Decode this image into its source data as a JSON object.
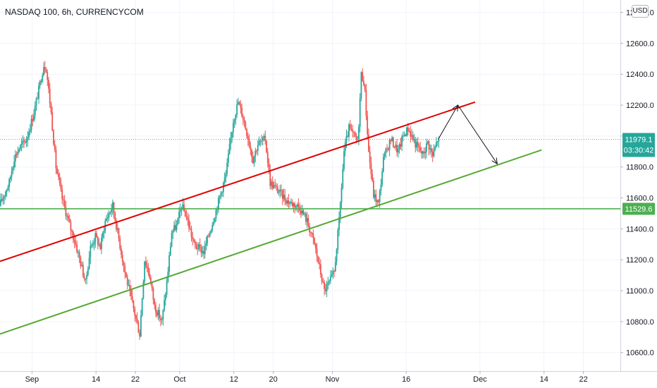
{
  "title": "NASDAQ 100, 6h, CURRENCYCOM",
  "currency_button": "USD",
  "price_labels": {
    "last_price": "11979.1",
    "countdown": "03:30:42",
    "support_level": "11529.6"
  },
  "colors": {
    "up": "#26a69a",
    "down": "#ef5350",
    "resistance_line": "#e00000",
    "support_line": "#55a832",
    "horizontal_line": "#4caf50",
    "last_price_label": "#26a69a",
    "axis_text": "#131722",
    "arrow": "#131722"
  },
  "chart_data": {
    "type": "candlestick",
    "symbol": "NASDAQ 100",
    "interval": "6h",
    "exchange": "CURRENCYCOM",
    "ylim": [
      10480,
      12880
    ],
    "y_ticks": [
      10600,
      10800,
      11000,
      11200,
      11400,
      11600,
      11800,
      12000,
      12200,
      12400,
      12600,
      12800
    ],
    "y_tick_labels": [
      "10600.0",
      "10800.0",
      "11000.0",
      "11200.0",
      "11400.0",
      "11600.0",
      "11800.0",
      "12000.0",
      "12200.0",
      "12400.0",
      "12600.0",
      "12800.0"
    ],
    "x_ticks": [
      {
        "label": "Sep",
        "day": 0
      },
      {
        "label": "14",
        "day": 13
      },
      {
        "label": "22",
        "day": 21
      },
      {
        "label": "Oct",
        "day": 30
      },
      {
        "label": "12",
        "day": 41
      },
      {
        "label": "20",
        "day": 49
      },
      {
        "label": "Nov",
        "day": 61
      },
      {
        "label": "16",
        "day": 76
      },
      {
        "label": "Dec",
        "day": 91
      },
      {
        "label": "14",
        "day": 104
      },
      {
        "label": "22",
        "day": 112
      }
    ],
    "x_day_range": [
      -6.5,
      119.5
    ],
    "last_price": 11979.1,
    "support_level": 11529.6,
    "path": [
      [
        -6.5,
        11550
      ],
      [
        -4.5,
        11700
      ],
      [
        -3.5,
        11860
      ],
      [
        -2.5,
        11920
      ],
      [
        -1,
        11980
      ],
      [
        0.5,
        12150
      ],
      [
        1.5,
        12300
      ],
      [
        2.5,
        12460
      ],
      [
        3,
        12440
      ],
      [
        4,
        12150
      ],
      [
        5,
        11800
      ],
      [
        6.2,
        11600
      ],
      [
        7.5,
        11450
      ],
      [
        9,
        11300
      ],
      [
        10,
        11180
      ],
      [
        11,
        11050
      ],
      [
        12,
        11280
      ],
      [
        13,
        11350
      ],
      [
        14,
        11280
      ],
      [
        15,
        11450
      ],
      [
        16.5,
        11550
      ],
      [
        17.5,
        11380
      ],
      [
        19,
        11120
      ],
      [
        20,
        10980
      ],
      [
        21,
        10850
      ],
      [
        22,
        10720
      ],
      [
        23,
        11200
      ],
      [
        24,
        11100
      ],
      [
        25,
        10900
      ],
      [
        26.5,
        10800
      ],
      [
        27.5,
        11050
      ],
      [
        28.5,
        11380
      ],
      [
        29.5,
        11420
      ],
      [
        30.5,
        11550
      ],
      [
        31.5,
        11480
      ],
      [
        33,
        11300
      ],
      [
        35,
        11250
      ],
      [
        37.5,
        11520
      ],
      [
        39.5,
        11750
      ],
      [
        41,
        12100
      ],
      [
        42,
        12220
      ],
      [
        43,
        12120
      ],
      [
        44,
        11990
      ],
      [
        45,
        11850
      ],
      [
        46,
        11950
      ],
      [
        47.5,
        11980
      ],
      [
        48.5,
        11700
      ],
      [
        50,
        11650
      ],
      [
        52,
        11580
      ],
      [
        54.5,
        11540
      ],
      [
        56,
        11450
      ],
      [
        57.5,
        11300
      ],
      [
        58.5,
        11150
      ],
      [
        59.5,
        11000
      ],
      [
        60.5,
        11050
      ],
      [
        61.5,
        11120
      ],
      [
        62.5,
        11450
      ],
      [
        63.5,
        11900
      ],
      [
        64.5,
        12050
      ],
      [
        65.5,
        12000
      ],
      [
        66.3,
        11960
      ],
      [
        67,
        12400
      ],
      [
        67.6,
        12350
      ],
      [
        68.5,
        11900
      ],
      [
        69.5,
        11620
      ],
      [
        70.5,
        11560
      ],
      [
        71.5,
        11850
      ],
      [
        73,
        11980
      ],
      [
        74.5,
        11900
      ],
      [
        75.5,
        12000
      ],
      [
        76.5,
        12050
      ],
      [
        78,
        11950
      ],
      [
        79.5,
        11880
      ],
      [
        80.5,
        11960
      ],
      [
        81.5,
        11870
      ],
      [
        82.5,
        11979.1
      ]
    ],
    "annotations": {
      "resistance_line": {
        "from": {
          "day": -6.5,
          "price": 11190
        },
        "to": {
          "day": 90,
          "price": 12220
        }
      },
      "support_line": {
        "from": {
          "day": -6.5,
          "price": 10720
        },
        "to": {
          "day": 103.5,
          "price": 11910
        }
      },
      "horizontal_line": {
        "price": 11529.6
      },
      "projection_arrow": [
        {
          "day": 82.5,
          "price": 11979.1
        },
        {
          "day": 86.5,
          "price": 12200
        },
        {
          "day": 94.5,
          "price": 11820
        }
      ]
    }
  }
}
